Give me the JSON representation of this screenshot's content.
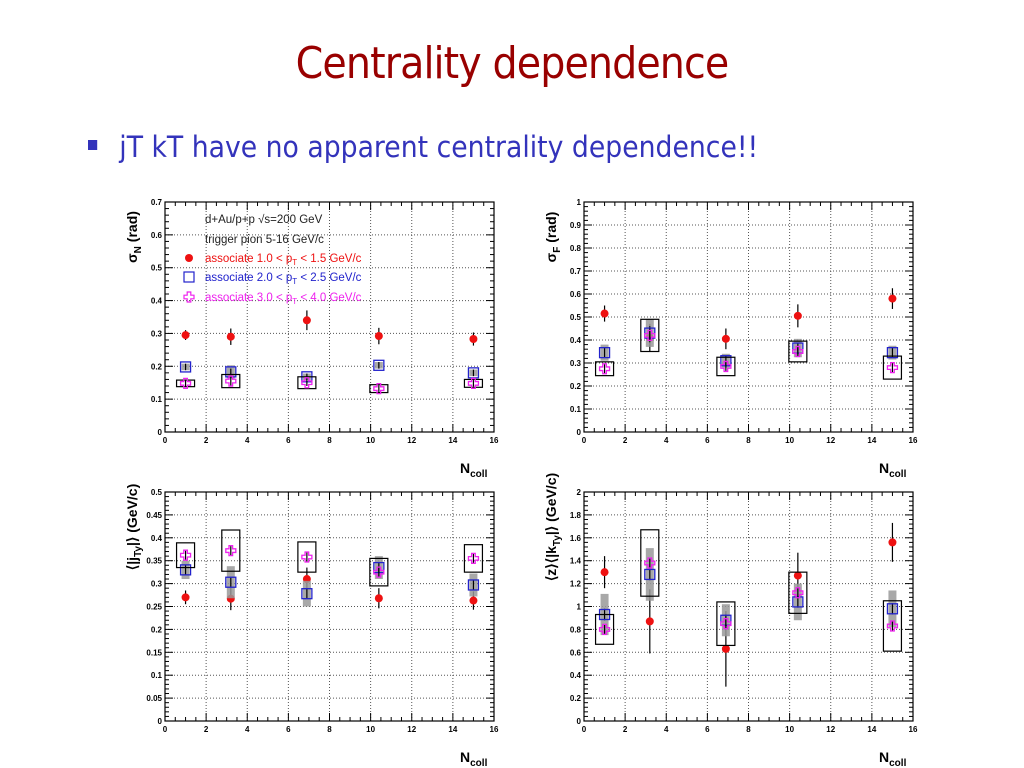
{
  "slide": {
    "title": "Centrality dependence",
    "bullets": [
      "jT kT have no apparent centrality dependence!!"
    ],
    "title_color": "#990000",
    "bullet_color": "#3333bb"
  },
  "legend": {
    "line1": "d+Au/p+p √s=200 GeV",
    "line2": "trigger pion 5-16 GeV/c",
    "entries": [
      {
        "label": "associate 1.0 < pT < 1.5 GeV/c",
        "color": "#ee1111",
        "marker": "circle"
      },
      {
        "label": "associate 2.0 < pT < 2.5 GeV/c",
        "color": "#2222cc",
        "marker": "open-square"
      },
      {
        "label": "associate 3.0 < pT < 4.0 GeV/c",
        "color": "#ee22ee",
        "marker": "open-cross"
      }
    ]
  },
  "chart_data": [
    {
      "type": "scatter",
      "title": "",
      "xlabel": "N_coll",
      "ylabel": "σ_N (rad)",
      "xlim": [
        0,
        16
      ],
      "ylim": [
        0,
        0.7
      ],
      "xticks": [
        0,
        2,
        4,
        6,
        8,
        10,
        12,
        14,
        16
      ],
      "yticks": [
        0,
        0.1,
        0.2,
        0.3,
        0.4,
        0.5,
        0.6,
        0.7
      ],
      "grid": true,
      "legend": "top-left",
      "x": [
        1.0,
        3.2,
        6.9,
        10.4,
        15.0
      ],
      "series": [
        {
          "name": "associate 1.0 < pT < 1.5 GeV/c",
          "values": [
            0.295,
            0.29,
            0.34,
            0.292,
            0.283
          ],
          "err": [
            0.015,
            0.025,
            0.03,
            0.025,
            0.02
          ],
          "sys": [
            null,
            null,
            null,
            null,
            null
          ]
        },
        {
          "name": "associate 2.0 < pT < 2.5 GeV/c",
          "values": [
            0.198,
            0.183,
            0.168,
            0.203,
            0.18
          ],
          "err": [
            0.01,
            0.01,
            0.01,
            0.01,
            0.01
          ],
          "sys": [
            0.01,
            0.02,
            0.01,
            0.01,
            0.01
          ]
        },
        {
          "name": "associate 3.0 < pT < 4.0 GeV/c",
          "values": [
            0.148,
            0.155,
            0.15,
            0.132,
            0.148
          ],
          "err": [
            0.01,
            0.015,
            0.01,
            0.01,
            0.01
          ],
          "sys": [
            0.01,
            0.02,
            0.018,
            0.012,
            0.012
          ]
        }
      ]
    },
    {
      "type": "scatter",
      "title": "",
      "xlabel": "N_coll",
      "ylabel": "σ_F (rad)",
      "xlim": [
        0,
        16
      ],
      "ylim": [
        0,
        1
      ],
      "xticks": [
        0,
        2,
        4,
        6,
        8,
        10,
        12,
        14,
        16
      ],
      "yticks": [
        0,
        0.1,
        0.2,
        0.3,
        0.4,
        0.5,
        0.6,
        0.7,
        0.8,
        0.9,
        1
      ],
      "grid": true,
      "x": [
        1.0,
        3.2,
        6.9,
        10.4,
        15.0
      ],
      "series": [
        {
          "name": "associate 1.0 < pT < 1.5 GeV/c",
          "values": [
            0.515,
            0.41,
            0.405,
            0.505,
            0.58
          ],
          "err": [
            0.035,
            0.06,
            0.045,
            0.05,
            0.045
          ],
          "sys": [
            null,
            null,
            null,
            null,
            null
          ]
        },
        {
          "name": "associate 2.0 < pT < 2.5 GeV/c",
          "values": [
            0.345,
            0.43,
            0.31,
            0.365,
            0.345
          ],
          "err": [
            0.02,
            0.03,
            0.02,
            0.02,
            0.02
          ],
          "sys": [
            0.035,
            0.06,
            0.03,
            0.04,
            0.03
          ]
        },
        {
          "name": "associate 3.0 < pT < 4.0 GeV/c",
          "values": [
            0.275,
            0.42,
            0.285,
            0.35,
            0.28
          ],
          "err": [
            0.02,
            0.03,
            0.02,
            0.02,
            0.02
          ],
          "sys": [
            0.03,
            0.07,
            0.04,
            0.045,
            0.05
          ]
        }
      ]
    },
    {
      "type": "scatter",
      "title": "",
      "xlabel": "N_coll",
      "ylabel": "⟨|j_T_y|⟩ (GeV/c)",
      "xlim": [
        0,
        16
      ],
      "ylim": [
        0,
        0.5
      ],
      "xticks": [
        0,
        2,
        4,
        6,
        8,
        10,
        12,
        14,
        16
      ],
      "yticks": [
        0,
        0.05,
        0.1,
        0.15,
        0.2,
        0.25,
        0.3,
        0.35,
        0.4,
        0.45,
        0.5
      ],
      "grid": true,
      "x": [
        1.0,
        3.2,
        6.9,
        10.4,
        15.0
      ],
      "series": [
        {
          "name": "associate 1.0 < pT < 1.5 GeV/c",
          "values": [
            0.27,
            0.267,
            0.31,
            0.268,
            0.263
          ],
          "err": [
            0.015,
            0.025,
            0.025,
            0.022,
            0.02
          ],
          "sys": [
            null,
            null,
            null,
            null,
            null
          ]
        },
        {
          "name": "associate 2.0 < pT < 2.5 GeV/c",
          "values": [
            0.33,
            0.303,
            0.278,
            0.335,
            0.297
          ],
          "err": [
            0.01,
            0.01,
            0.01,
            0.01,
            0.01
          ],
          "sys": [
            0.02,
            0.035,
            0.028,
            0.025,
            0.025
          ]
        },
        {
          "name": "associate 3.0 < pT < 4.0 GeV/c",
          "values": [
            0.362,
            0.372,
            0.358,
            0.325,
            0.355
          ],
          "err": [
            0.01,
            0.01,
            0.01,
            0.01,
            0.01
          ],
          "sys": [
            0.027,
            0.045,
            0.033,
            0.03,
            0.03
          ]
        }
      ]
    },
    {
      "type": "scatter",
      "title": "",
      "xlabel": "N_coll",
      "ylabel": "⟨z⟩⟨|k_T_y|⟩ (GeV/c)",
      "xlim": [
        0,
        16
      ],
      "ylim": [
        0,
        2
      ],
      "xticks": [
        0,
        2,
        4,
        6,
        8,
        10,
        12,
        14,
        16
      ],
      "yticks": [
        0,
        0.2,
        0.4,
        0.6,
        0.8,
        1,
        1.2,
        1.4,
        1.6,
        1.8,
        2
      ],
      "grid": true,
      "x": [
        1.0,
        3.2,
        6.9,
        10.4,
        15.0
      ],
      "series": [
        {
          "name": "associate 1.0 < pT < 1.5 GeV/c",
          "values": [
            1.3,
            0.87,
            0.63,
            1.27,
            1.56
          ],
          "err": [
            0.14,
            0.28,
            0.33,
            0.2,
            0.17
          ],
          "sys": [
            null,
            null,
            null,
            null,
            null
          ]
        },
        {
          "name": "associate 2.0 < pT < 2.5 GeV/c",
          "values": [
            0.93,
            1.28,
            0.88,
            1.04,
            0.98
          ],
          "err": [
            0.05,
            0.05,
            0.05,
            0.05,
            0.05
          ],
          "sys": [
            0.18,
            0.23,
            0.14,
            0.16,
            0.16
          ]
        },
        {
          "name": "associate 3.0 < pT < 4.0 GeV/c",
          "values": [
            0.8,
            1.38,
            0.85,
            1.12,
            0.83
          ],
          "err": [
            0.04,
            0.04,
            0.04,
            0.04,
            0.04
          ],
          "sys": [
            0.13,
            0.29,
            0.19,
            0.18,
            0.22
          ]
        }
      ]
    }
  ]
}
